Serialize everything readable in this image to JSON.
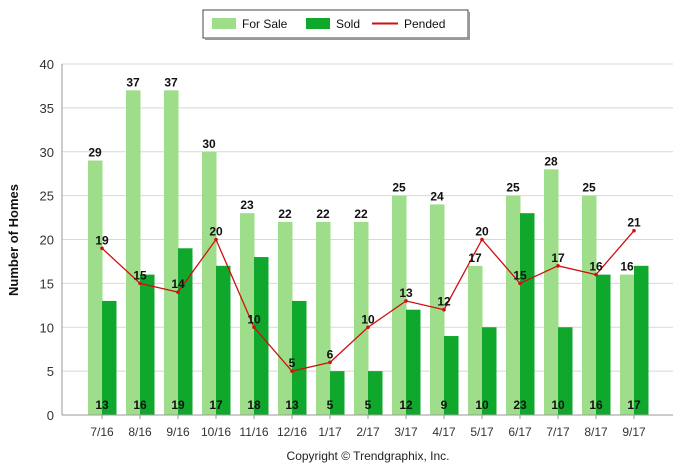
{
  "chart_data": {
    "type": "bar",
    "title": "",
    "xlabel": "",
    "ylabel": "Number of Homes",
    "ylim": [
      0,
      40
    ],
    "yticks": [
      0,
      5,
      10,
      15,
      20,
      25,
      30,
      35,
      40
    ],
    "grid": true,
    "legend_position": "top-center",
    "categories": [
      "7/16",
      "8/16",
      "9/16",
      "10/16",
      "11/16",
      "12/16",
      "1/17",
      "2/17",
      "3/17",
      "4/17",
      "5/17",
      "6/17",
      "7/17",
      "8/17",
      "9/17"
    ],
    "series": [
      {
        "name": "For Sale",
        "type": "bar",
        "color": "#9ede8a",
        "values": [
          29,
          37,
          37,
          30,
          23,
          22,
          22,
          22,
          25,
          24,
          17,
          25,
          28,
          25,
          16
        ]
      },
      {
        "name": "Sold",
        "type": "bar",
        "color": "#10a82c",
        "values": [
          13,
          16,
          19,
          17,
          18,
          13,
          5,
          5,
          12,
          9,
          10,
          23,
          10,
          16,
          17
        ]
      },
      {
        "name": "Pended",
        "type": "line",
        "color": "#d01010",
        "values": [
          19,
          15,
          14,
          20,
          10,
          5,
          6,
          10,
          13,
          12,
          20,
          15,
          17,
          16,
          21
        ]
      }
    ],
    "footer": "Copyright © Trendgraphix, Inc."
  }
}
